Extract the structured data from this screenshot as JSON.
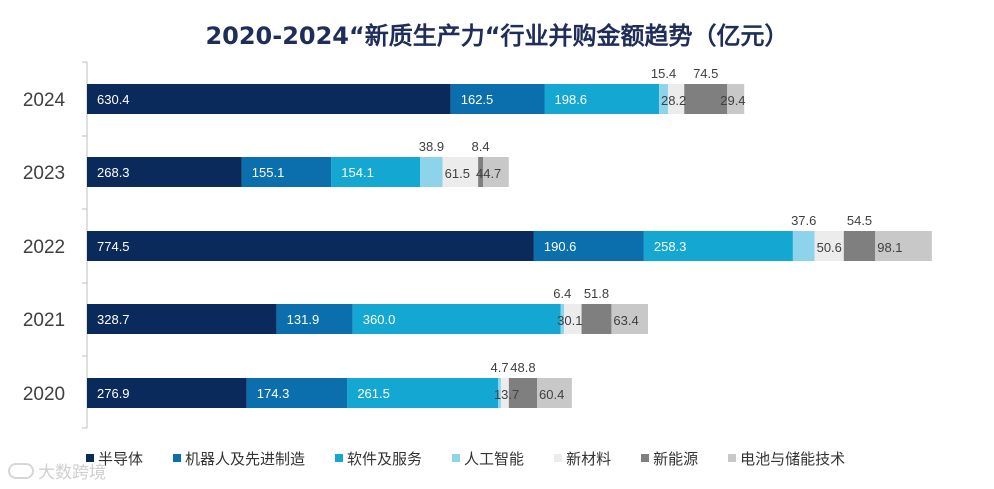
{
  "chart_data": {
    "type": "bar",
    "orientation": "horizontal",
    "stacked": true,
    "title": "2020-2024“新质生产力“行业并购金额趋势（亿元）",
    "xlabel": "",
    "ylabel": "",
    "categories": [
      "2024",
      "2023",
      "2022",
      "2021",
      "2020"
    ],
    "xlim": [
      0,
      1500
    ],
    "grid": false,
    "legend_position": "bottom",
    "series": [
      {
        "name": "半导体",
        "color": "#0b2a5c",
        "values": [
          630.4,
          268.3,
          774.5,
          328.7,
          276.9
        ]
      },
      {
        "name": "机器人及先进制造",
        "color": "#0b6fad",
        "values": [
          162.5,
          155.1,
          190.6,
          131.9,
          174.3
        ]
      },
      {
        "name": "软件及服务",
        "color": "#14a7d2",
        "values": [
          198.6,
          154.1,
          258.3,
          360.0,
          261.5
        ]
      },
      {
        "name": "人工智能",
        "color": "#8dd3ec",
        "values": [
          15.4,
          38.9,
          37.6,
          6.4,
          4.7
        ]
      },
      {
        "name": "新材料",
        "color": "#ececec",
        "values": [
          28.2,
          61.5,
          50.6,
          30.1,
          13.7
        ]
      },
      {
        "name": "新能源",
        "color": "#7f7f7f",
        "values": [
          74.5,
          8.4,
          54.5,
          51.8,
          48.8
        ]
      },
      {
        "name": "电池与储能技术",
        "color": "#c8c8c8",
        "values": [
          29.4,
          44.7,
          98.1,
          63.4,
          60.4
        ]
      }
    ],
    "data_labels": [
      [
        "630.4",
        "162.5",
        "198.6",
        "15.4",
        "28.2",
        "74.5",
        "29.4"
      ],
      [
        "268.3",
        "155.1",
        "154.1",
        "38.9",
        "61.5",
        "8.4",
        "44.7"
      ],
      [
        "774.5",
        "190.6",
        "258.3",
        "37.6",
        "50.6",
        "54.5",
        "98.1"
      ],
      [
        "328.7",
        "131.9",
        "360.0",
        "6.4",
        "30.1",
        "51.8",
        "63.4"
      ],
      [
        "276.9",
        "174.3",
        "261.5",
        "4.7",
        "13.7",
        "48.8",
        "60.4"
      ]
    ]
  },
  "watermark": {
    "text": "大数跨境"
  }
}
